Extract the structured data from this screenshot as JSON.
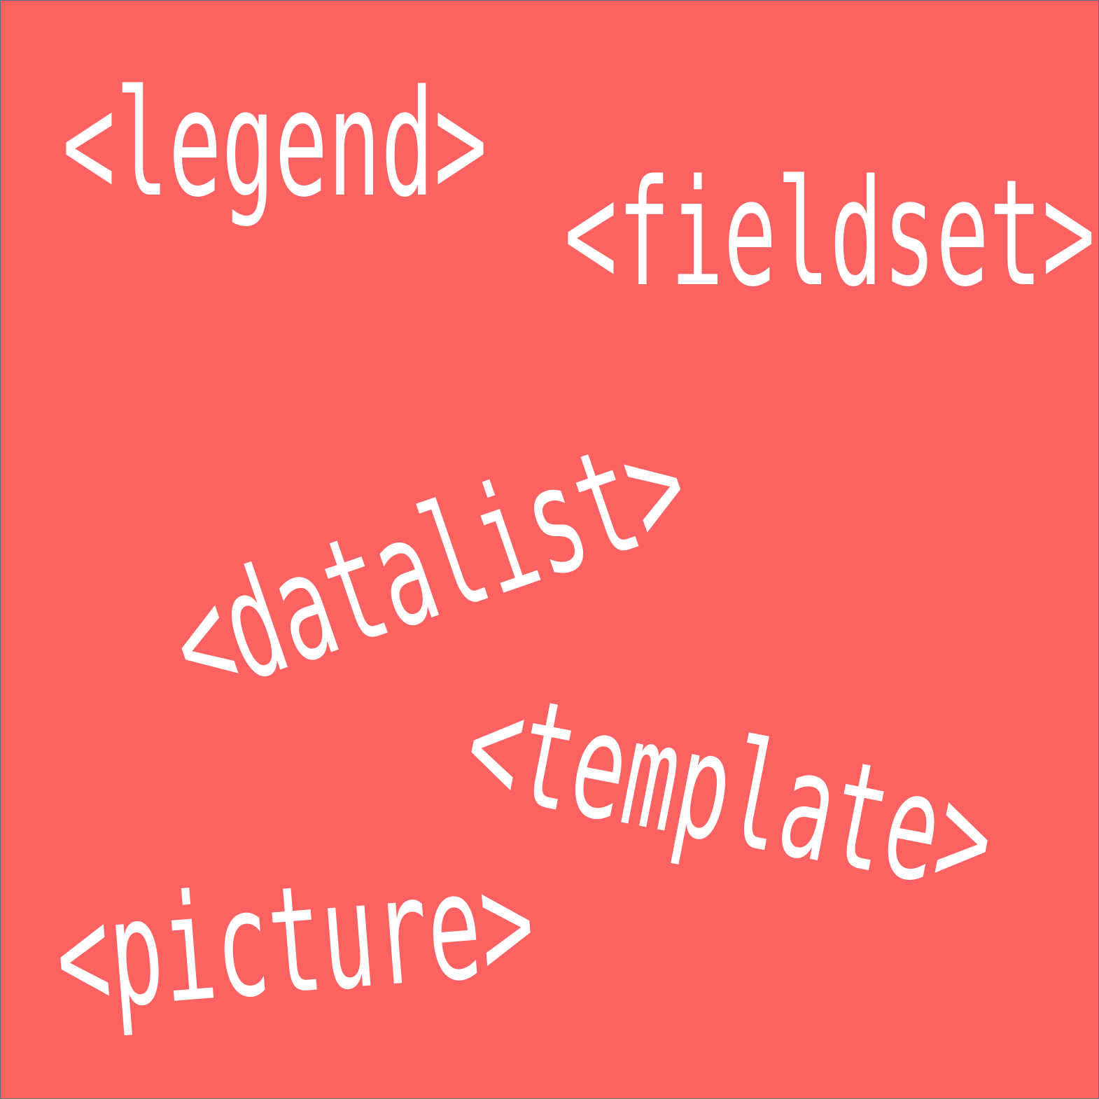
{
  "background_color": "#fc6262",
  "text_color": "#ffffff",
  "tags": {
    "legend": "<legend>",
    "fieldset": "<fieldset>",
    "datalist": "<datalist>",
    "template": "<template>",
    "picture": "<picture>"
  }
}
